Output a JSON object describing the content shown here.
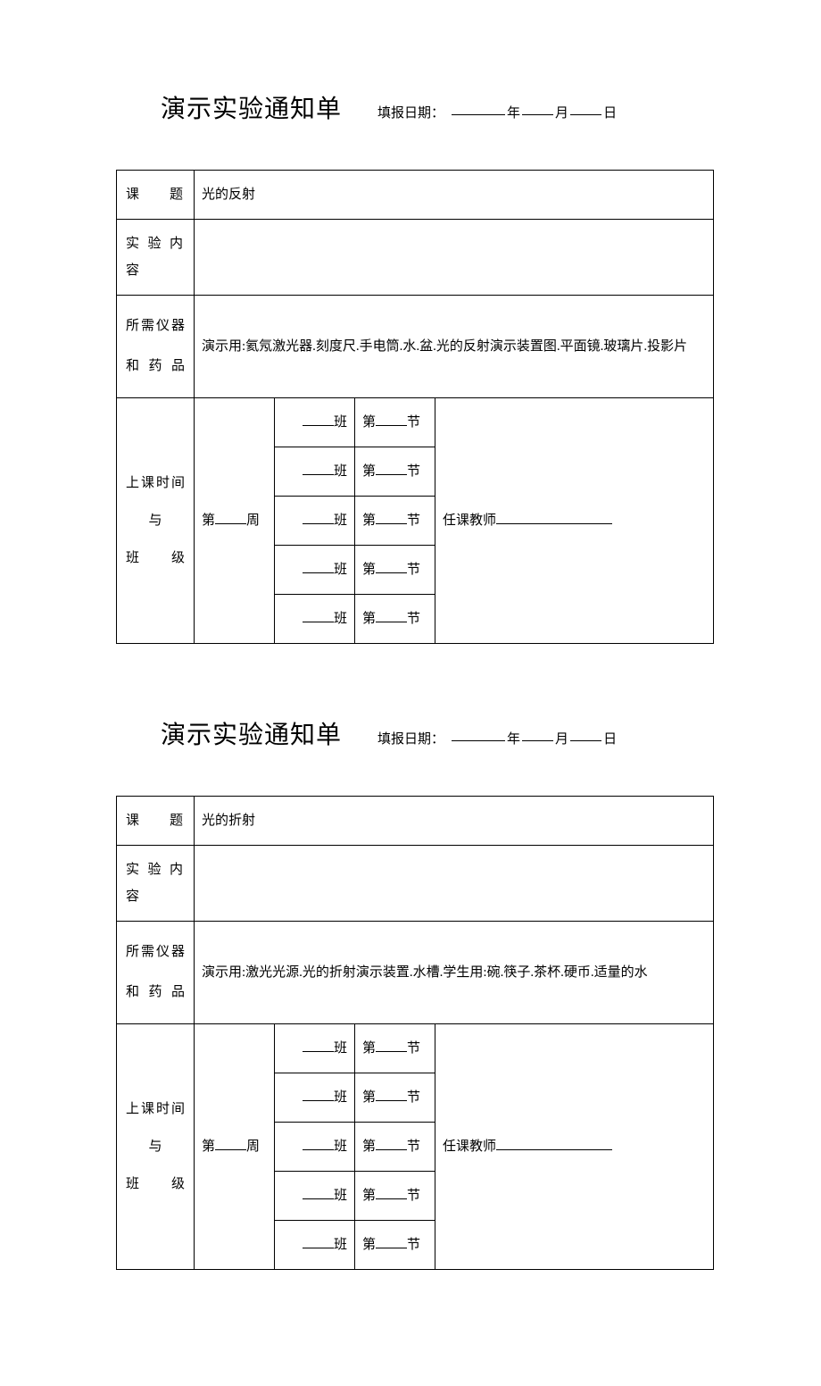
{
  "colors": {
    "background": "#ffffff",
    "text": "#000000",
    "border": "#000000"
  },
  "typography": {
    "title_fontsize": 28,
    "label_fontsize": 15,
    "body_fontsize": 15,
    "font_family": "SimSun"
  },
  "forms": [
    {
      "title": "演示实验通知单",
      "date_label": "填报日期：",
      "year_suffix": "年",
      "month_suffix": "月",
      "day_suffix": "日",
      "rows": {
        "topic_label": "课　题",
        "topic_value": "光的反射",
        "content_label": "实验内容",
        "content_value": "",
        "equipment_label_line1": "所需仪器",
        "equipment_label_line2": "和 药 品",
        "equipment_value": "演示用:氦氖激光器.刻度尺.手电筒.水.盆.光的反射演示装置图.平面镜.玻璃片.投影片",
        "schedule_label_line1": "上课时间",
        "schedule_label_line2": "与",
        "schedule_label_line3": "班　级",
        "week_prefix": "第",
        "week_suffix": "周",
        "class_suffix": "班",
        "section_prefix": "第",
        "section_suffix": "节",
        "teacher_label": "任课教师"
      }
    },
    {
      "title": "演示实验通知单",
      "date_label": "填报日期：",
      "year_suffix": "年",
      "month_suffix": "月",
      "day_suffix": "日",
      "rows": {
        "topic_label": "课　题",
        "topic_value": "光的折射",
        "content_label": "实验内容",
        "content_value": "",
        "equipment_label_line1": "所需仪器",
        "equipment_label_line2": "和 药 品",
        "equipment_value": "演示用:激光光源.光的折射演示装置.水槽.学生用:碗.筷子.茶杯.硬币.适量的水",
        "schedule_label_line1": "上课时间",
        "schedule_label_line2": "与",
        "schedule_label_line3": "班　级",
        "week_prefix": "第",
        "week_suffix": "周",
        "class_suffix": "班",
        "section_prefix": "第",
        "section_suffix": "节",
        "teacher_label": "任课教师"
      }
    }
  ]
}
